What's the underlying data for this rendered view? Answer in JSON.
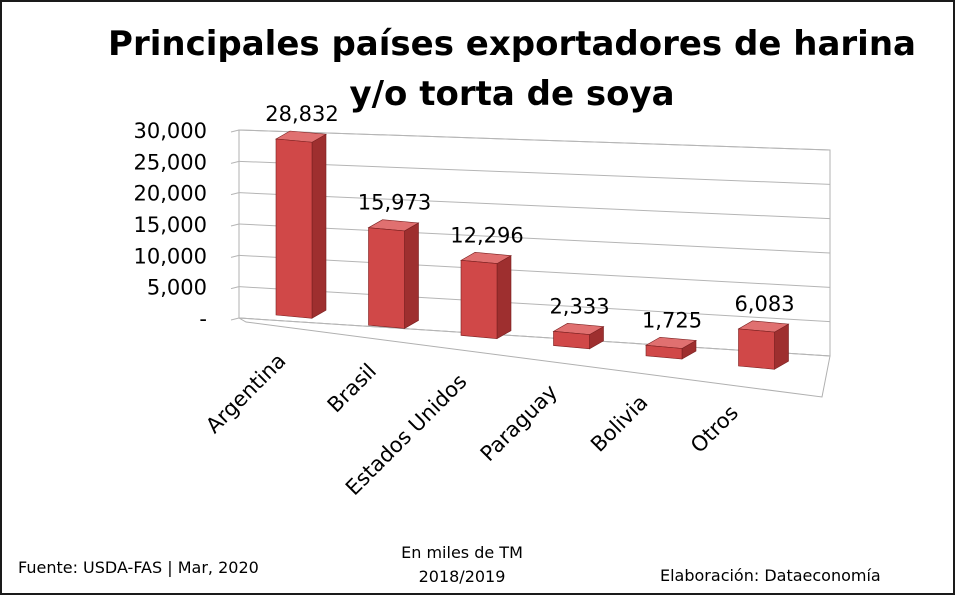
{
  "chart_data": {
    "type": "bar",
    "title_lines": [
      "Principales países exportadores de harina",
      "y/o torta de soya"
    ],
    "categories": [
      "Argentina",
      "Brasil",
      "Estados Unidos",
      "Paraguay",
      "Bolivia",
      "Otros"
    ],
    "values": [
      28832,
      15973,
      12296,
      2333,
      1725,
      6083
    ],
    "data_labels": [
      "28,832",
      "15,973",
      "12,296",
      "2,333",
      "1,725",
      "6,083"
    ],
    "y_ticks": [
      0,
      5000,
      10000,
      15000,
      20000,
      25000,
      30000
    ],
    "y_tick_labels": [
      "-",
      "5,000",
      "10,000",
      "15,000",
      "20,000",
      "25,000",
      "30,000"
    ],
    "ylim": [
      0,
      30000
    ],
    "grid": true,
    "legend": "none",
    "style": "3d-perspective-columns",
    "bar_color": "#d04848"
  },
  "footer": {
    "source": "Fuente:  USDA-FAS | Mar, 2020",
    "units_line1": "En miles de TM",
    "units_line2": "2018/2019",
    "credit": "Elaboración: Dataeconomía"
  }
}
